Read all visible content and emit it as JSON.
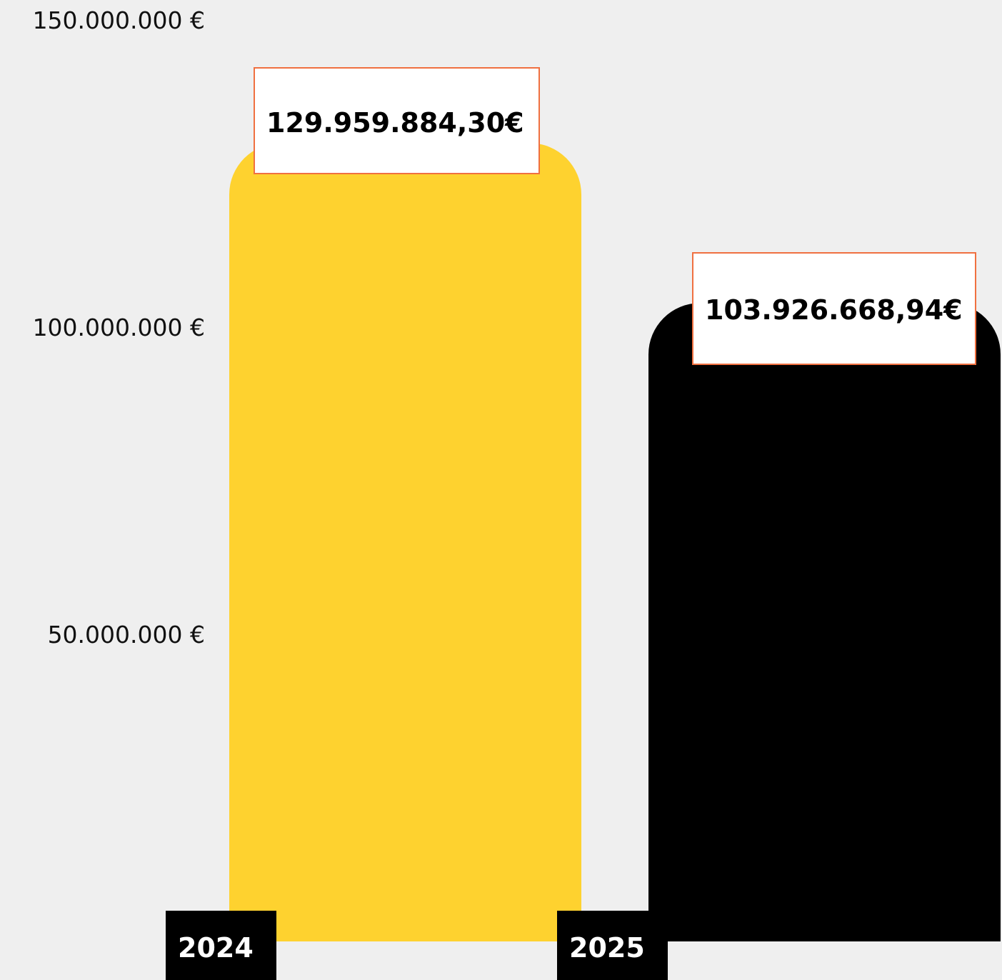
{
  "chart_data": {
    "type": "bar",
    "categories": [
      "2024",
      "2025"
    ],
    "values": [
      129959884.3,
      103926668.94
    ],
    "data_labels": [
      "129.959.884,30€",
      "103.926.668,94€"
    ],
    "ylim": [
      0,
      150000000
    ],
    "y_ticks": [
      {
        "value": 150000000,
        "label": "150.000.000 €"
      },
      {
        "value": 100000000,
        "label": "100.000.000 €"
      },
      {
        "value": 50000000,
        "label": "50.000.000 €"
      }
    ],
    "grid": false,
    "legend": "none",
    "title": "",
    "xlabel": "",
    "ylabel": ""
  },
  "colors": {
    "background": "#efefef",
    "bars": [
      "#fed22f",
      "#000000"
    ],
    "label_box_border": "#f07040",
    "label_box_fill": "#ffffff",
    "x_label_fill": "#000000",
    "x_label_text": "#ffffff",
    "axis_text": "#111111"
  }
}
